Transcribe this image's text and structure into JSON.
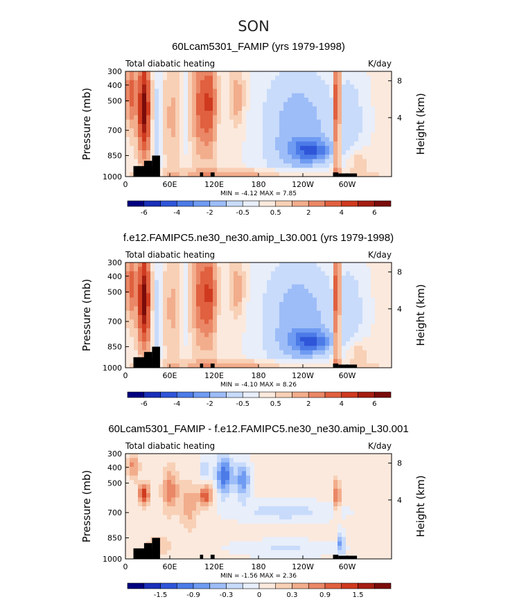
{
  "figure": {
    "title": "SON"
  },
  "colors": {
    "scale": [
      "#00007f",
      "#1a2fb8",
      "#2f55d8",
      "#4c7be8",
      "#6f9bf2",
      "#9dbdf8",
      "#c8dbfb",
      "#e8eefa",
      "#fbe9dd",
      "#f8d0b6",
      "#f2ad8c",
      "#ea8766",
      "#e0603f",
      "#cf3a1f",
      "#a51e12",
      "#7a0c0a"
    ],
    "land": "#000000"
  },
  "chart_data": [
    {
      "type": "heatmap",
      "title": "60Lcam5301_FAMIP (yrs 1979-1998)",
      "subtitle_left": "Total diabatic heating",
      "units": "K/day",
      "xlabel": "",
      "ylabel": "Pressure (mb)",
      "ylabel_right": "Height (km)",
      "x_ticks": [
        "0",
        "60E",
        "120E",
        "180",
        "120W",
        "60W"
      ],
      "y_ticks": [
        "300",
        "400",
        "500",
        "700",
        "850",
        "1000"
      ],
      "y2_ticks": [
        "8",
        "4"
      ],
      "stats": "MIN =   -4.12   MAX =    7.85",
      "colorbar_labels": [
        "-6",
        "-4",
        "-2",
        "-0.5",
        "0.5",
        "2",
        "4",
        "6"
      ],
      "colorbar_levels": [
        -7,
        -6,
        -5,
        -4,
        -3,
        -2,
        -1,
        -0.5,
        0,
        0.5,
        1,
        2,
        3,
        4,
        5,
        6,
        7
      ],
      "min": -4.12,
      "max": 7.85
    },
    {
      "type": "heatmap",
      "title": "f.e12.FAMIPC5.ne30_ne30.amip_L30.001 (yrs 1979-1998)",
      "subtitle_left": "Total diabatic heating",
      "units": "K/day",
      "xlabel": "",
      "ylabel": "Pressure (mb)",
      "ylabel_right": "Height (km)",
      "x_ticks": [
        "0",
        "60E",
        "120E",
        "180",
        "120W",
        "60W"
      ],
      "y_ticks": [
        "300",
        "400",
        "500",
        "700",
        "850",
        "1000"
      ],
      "y2_ticks": [
        "8",
        "4"
      ],
      "stats": "MIN =   -4.10   MAX =    8.26",
      "colorbar_labels": [
        "-6",
        "-4",
        "-2",
        "-0.5",
        "0.5",
        "2",
        "4",
        "6"
      ],
      "colorbar_levels": [
        -7,
        -6,
        -5,
        -4,
        -3,
        -2,
        -1,
        -0.5,
        0,
        0.5,
        1,
        2,
        3,
        4,
        5,
        6,
        7
      ],
      "min": -4.1,
      "max": 8.26
    },
    {
      "type": "heatmap",
      "title": "60Lcam5301_FAMIP - f.e12.FAMIPC5.ne30_ne30.amip_L30.001",
      "subtitle_left": "Total diabatic heating",
      "units": "K/day",
      "xlabel": "",
      "ylabel": "Pressure (mb)",
      "ylabel_right": "Height (km)",
      "x_ticks": [
        "0",
        "60E",
        "120E",
        "180",
        "120W",
        "60W"
      ],
      "y_ticks": [
        "300",
        "400",
        "500",
        "700",
        "850",
        "1000"
      ],
      "y2_ticks": [
        "8",
        "4"
      ],
      "stats": "MIN =   -1.56   MAX =    2.36",
      "colorbar_labels": [
        "-1.5",
        "-0.9",
        "-0.3",
        "0",
        "0.3",
        "0.9",
        "1.5"
      ],
      "colorbar_levels": [
        -2.1,
        -1.8,
        -1.5,
        -1.2,
        -0.9,
        -0.6,
        -0.3,
        -0.1,
        0,
        0.1,
        0.3,
        0.6,
        0.9,
        1.2,
        1.5,
        1.8,
        2.1
      ],
      "min": -1.56,
      "max": 2.36
    }
  ]
}
